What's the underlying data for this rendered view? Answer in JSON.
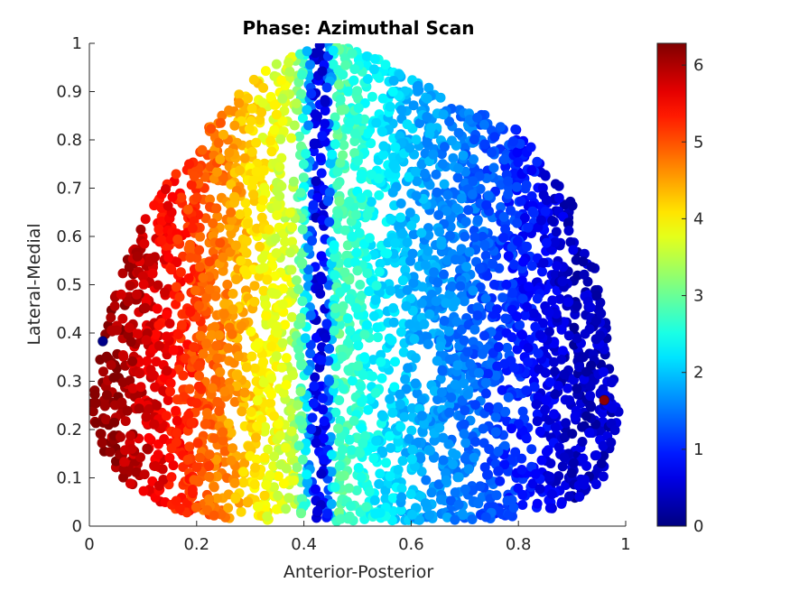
{
  "chart_data": {
    "type": "scatter",
    "title": "Phase: Azimuthal Scan",
    "xlabel": "Anterior-Posterior",
    "ylabel": "Lateral-Medial",
    "xlim": [
      0,
      1
    ],
    "ylim": [
      0,
      1
    ],
    "xticks": [
      "0",
      "0.2",
      "0.4",
      "0.6",
      "0.8",
      "1"
    ],
    "yticks": [
      "0",
      "0.1",
      "0.2",
      "0.3",
      "0.4",
      "0.5",
      "0.6",
      "0.7",
      "0.8",
      "0.9",
      "1"
    ],
    "colormap": "jet",
    "colorbar": {
      "range": [
        0,
        6.2832
      ],
      "ticks": [
        "0",
        "1",
        "2",
        "3",
        "4",
        "5",
        "6"
      ]
    },
    "region": {
      "description_points_x": [
        0.0,
        0.02,
        0.04,
        0.07,
        0.1,
        0.15,
        0.2,
        0.25,
        0.3,
        0.35,
        0.4,
        0.45,
        0.5,
        0.55,
        0.6,
        0.65,
        0.7,
        0.75,
        0.8,
        0.85,
        0.9,
        0.93,
        0.95,
        0.97,
        0.985,
        0.99,
        0.985,
        0.96,
        0.92,
        0.88,
        0.84,
        0.8,
        0.7,
        0.6,
        0.5,
        0.4,
        0.3,
        0.2,
        0.15,
        0.1,
        0.06,
        0.03,
        0.01
      ],
      "description_points_y": [
        0.22,
        0.35,
        0.45,
        0.55,
        0.63,
        0.72,
        0.8,
        0.86,
        0.92,
        0.96,
        0.99,
        1.0,
        0.99,
        0.96,
        0.93,
        0.9,
        0.87,
        0.85,
        0.82,
        0.75,
        0.67,
        0.59,
        0.5,
        0.4,
        0.32,
        0.24,
        0.16,
        0.1,
        0.06,
        0.04,
        0.03,
        0.02,
        0.01,
        0.01,
        0.01,
        0.01,
        0.01,
        0.02,
        0.04,
        0.07,
        0.1,
        0.15,
        0.18
      ]
    },
    "phase_profile_x": [
      0.0,
      0.05,
      0.12,
      0.2,
      0.27,
      0.33,
      0.38,
      0.4,
      0.42,
      0.44,
      0.46,
      0.5,
      0.55,
      0.6,
      0.7,
      0.8,
      0.9,
      1.0
    ],
    "phase_profile_phase": [
      6.2,
      6.1,
      5.7,
      5.1,
      4.5,
      3.9,
      3.6,
      2.6,
      0.6,
      0.7,
      2.9,
      2.6,
      2.2,
      1.9,
      1.5,
      1.0,
      0.4,
      0.5
    ],
    "marked_points": [
      {
        "x": 0.025,
        "y": 0.383,
        "phase": 0.05
      },
      {
        "x": 0.96,
        "y": 0.261,
        "phase": 6.2
      }
    ]
  }
}
